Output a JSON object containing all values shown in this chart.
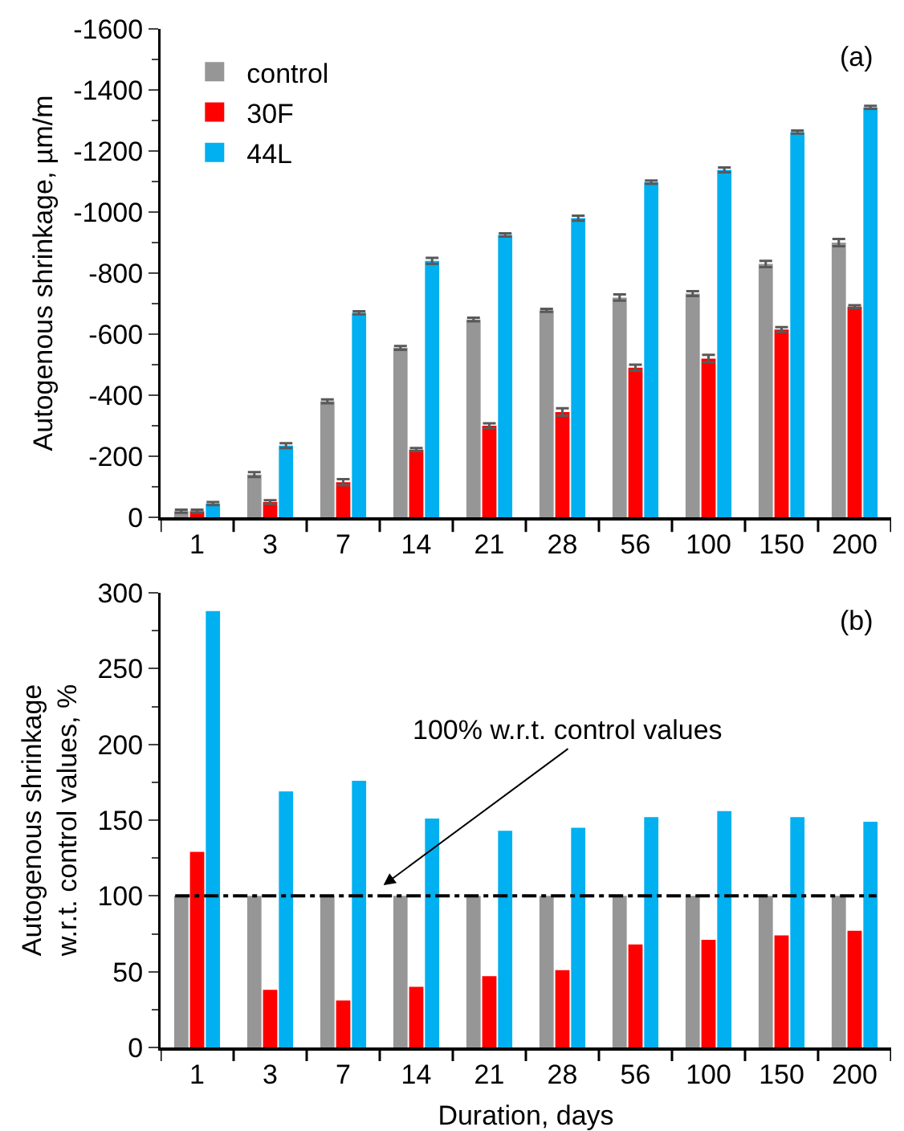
{
  "chart_data": [
    {
      "type": "bar",
      "ylabel": "Autogenous shrinkage, µm/m",
      "annotations": [
        "(a)"
      ],
      "categories": [
        "1",
        "3",
        "7",
        "14",
        "21",
        "28",
        "56",
        "100",
        "150",
        "200"
      ],
      "ylim": [
        0,
        -1600
      ],
      "yticks": [
        0,
        -200,
        -400,
        -600,
        -800,
        -1000,
        -1200,
        -1400,
        -1600
      ],
      "legend": "top left",
      "grid": false,
      "series": [
        {
          "name": "control",
          "color": "#969696",
          "values": [
            -20,
            -140,
            -380,
            -555,
            -648,
            -678,
            -720,
            -733,
            -830,
            -900
          ],
          "errors": [
            5,
            8,
            6,
            6,
            6,
            5,
            10,
            8,
            10,
            12
          ]
        },
        {
          "name": "30F",
          "color": "#ff0000",
          "values": [
            -20,
            -50,
            -115,
            -222,
            -300,
            -345,
            -490,
            -520,
            -615,
            -690
          ],
          "errors": [
            5,
            6,
            10,
            5,
            8,
            12,
            10,
            12,
            8,
            5
          ]
        },
        {
          "name": "44L",
          "color": "#00b0f0",
          "values": [
            -45,
            -235,
            -670,
            -840,
            -925,
            -980,
            -1098,
            -1138,
            -1262,
            -1343
          ],
          "errors": [
            5,
            8,
            5,
            10,
            5,
            8,
            5,
            8,
            5,
            5
          ]
        }
      ]
    },
    {
      "type": "bar",
      "ylabel": "Autogenous shrinkage w.r.t. control values, %",
      "xlabel": "Duration, days",
      "annotations": [
        "(b)",
        "100% w.r.t. control values"
      ],
      "categories": [
        "1",
        "3",
        "7",
        "14",
        "21",
        "28",
        "56",
        "100",
        "150",
        "200"
      ],
      "ylim": [
        0,
        300
      ],
      "yticks": [
        0,
        50,
        100,
        150,
        200,
        250,
        300
      ],
      "legend": false,
      "grid": false,
      "ref_lines": [
        {
          "axis": "y",
          "value": 100,
          "color": "#000000",
          "line_style": "dashdot"
        }
      ],
      "series": [
        {
          "color": "#969696",
          "values": [
            100,
            100,
            100,
            100,
            100,
            100,
            100,
            100,
            100,
            100
          ]
        },
        {
          "color": "#ff0000",
          "values": [
            129,
            38,
            31,
            40,
            47,
            51,
            68,
            71,
            74,
            77
          ]
        },
        {
          "color": "#00b0f0",
          "values": [
            288,
            169,
            176,
            151,
            143,
            145,
            152,
            156,
            152,
            149
          ]
        }
      ]
    }
  ]
}
